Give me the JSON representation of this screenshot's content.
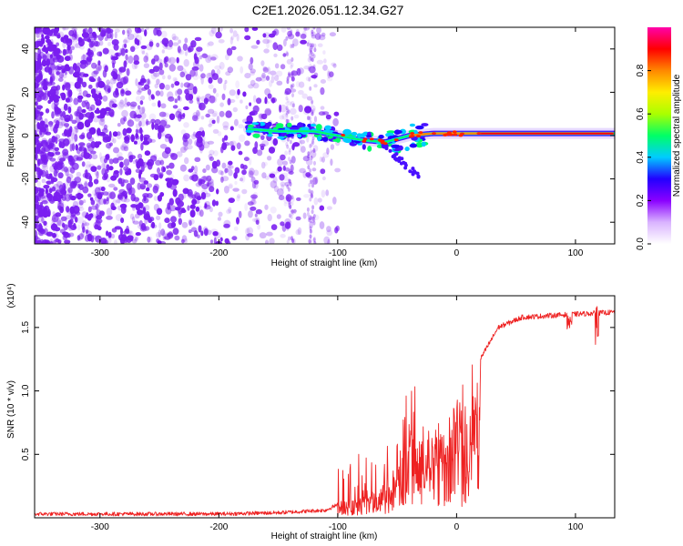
{
  "title": "C2E1.2026.051.12.34.G27",
  "chart_data": [
    {
      "type": "heatmap",
      "xlabel": "Height of straight line (km)",
      "ylabel": "Frequency (Hz)",
      "xlim": [
        -355,
        133
      ],
      "ylim": [
        -50,
        50
      ],
      "xticks": [
        -300,
        -200,
        -100,
        0,
        100
      ],
      "yticks": [
        -40,
        -20,
        0,
        20,
        40
      ],
      "ridge": [
        {
          "x": -175,
          "y": 3
        },
        {
          "x": -150,
          "y": 2
        },
        {
          "x": -120,
          "y": 2
        },
        {
          "x": -100,
          "y": 0
        },
        {
          "x": -80,
          "y": -2
        },
        {
          "x": -60,
          "y": -3
        },
        {
          "x": -40,
          "y": 0
        },
        {
          "x": -20,
          "y": 1
        },
        {
          "x": 0,
          "y": 1
        },
        {
          "x": 50,
          "y": 1
        },
        {
          "x": 100,
          "y": 1
        },
        {
          "x": 133,
          "y": 1
        }
      ],
      "colorbar": {
        "label": "Normalized spectral amplitude",
        "range": [
          0,
          1
        ],
        "ticks": [
          "0.0",
          "0.2",
          "0.4",
          "0.6",
          "0.8"
        ],
        "colors": [
          "#ffffff",
          "#d9b3ff",
          "#8a00ff",
          "#2200ff",
          "#00ccff",
          "#00ff66",
          "#aaff00",
          "#ffee00",
          "#ff8800",
          "#ff0000",
          "#ff00aa"
        ]
      },
      "point_color": "#7a1ef0"
    },
    {
      "type": "line",
      "xlabel": "Height of straight line (km)",
      "ylabel": "SNR (10 * v/v)",
      "y_multiplier": "(x10⁴)",
      "xlim": [
        -355,
        133
      ],
      "ylim": [
        0,
        1.75
      ],
      "xticks": [
        -300,
        -200,
        -100,
        0,
        100
      ],
      "yticks": [
        "0.5",
        "1.0",
        "1.5"
      ],
      "line_color": "#ee2222",
      "envelope": [
        {
          "x": -355,
          "y": 0.03
        },
        {
          "x": -200,
          "y": 0.03
        },
        {
          "x": -150,
          "y": 0.04
        },
        {
          "x": -110,
          "y": 0.06
        },
        {
          "x": -90,
          "y": 0.15
        },
        {
          "x": -70,
          "y": 0.22
        },
        {
          "x": -55,
          "y": 0.3
        },
        {
          "x": -45,
          "y": 0.45
        },
        {
          "x": -38,
          "y": 0.7
        },
        {
          "x": -30,
          "y": 0.6
        },
        {
          "x": -20,
          "y": 0.8
        },
        {
          "x": -10,
          "y": 0.75
        },
        {
          "x": 0,
          "y": 0.95
        },
        {
          "x": 10,
          "y": 0.8
        },
        {
          "x": 20,
          "y": 1.25
        },
        {
          "x": 35,
          "y": 1.5
        },
        {
          "x": 55,
          "y": 1.58
        },
        {
          "x": 90,
          "y": 1.6
        },
        {
          "x": 133,
          "y": 1.62
        }
      ]
    }
  ]
}
